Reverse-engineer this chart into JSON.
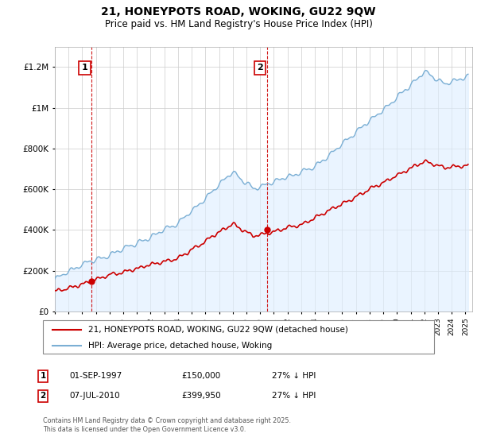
{
  "title": "21, HONEYPOTS ROAD, WOKING, GU22 9QW",
  "subtitle": "Price paid vs. HM Land Registry's House Price Index (HPI)",
  "legend_line1": "21, HONEYPOTS ROAD, WOKING, GU22 9QW (detached house)",
  "legend_line2": "HPI: Average price, detached house, Woking",
  "annotation1_date": "01-SEP-1997",
  "annotation1_price": "£150,000",
  "annotation1_hpi": "27% ↓ HPI",
  "annotation2_date": "07-JUL-2010",
  "annotation2_price": "£399,950",
  "annotation2_hpi": "27% ↓ HPI",
  "footer": "Contains HM Land Registry data © Crown copyright and database right 2025.\nThis data is licensed under the Open Government Licence v3.0.",
  "red_color": "#cc0000",
  "blue_color": "#7bafd4",
  "blue_fill": "#ddeeff",
  "vline_color": "#cc0000",
  "bg_color": "#ffffff",
  "grid_color": "#cccccc",
  "ylim_min": 0,
  "ylim_max": 1300000,
  "sale1_year": 1997.67,
  "sale1_price": 150000,
  "sale2_year": 2010.5,
  "sale2_price": 399950
}
